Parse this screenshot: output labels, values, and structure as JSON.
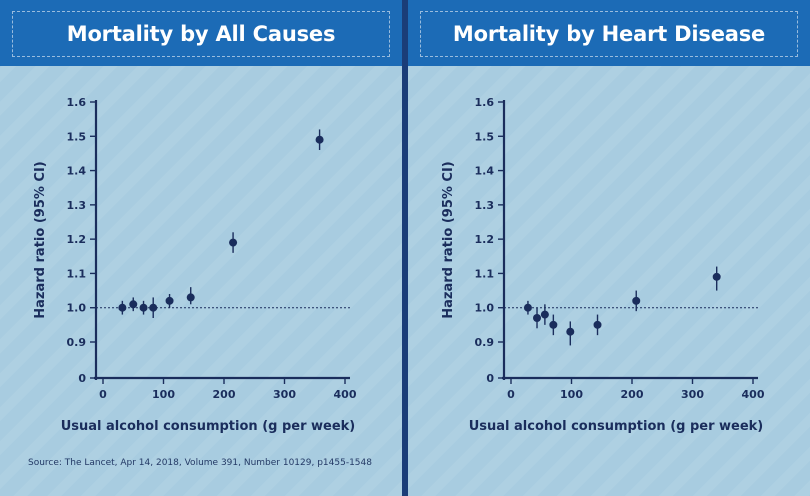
{
  "source": "Source: The Lancet, Apr 14, 2018, Volume 391, Number 10129, p1455-1548",
  "colors": {
    "header": "#1c6bb6",
    "divider": "#1a3d78",
    "marker": "#1a2d5c",
    "background": "#a8cce0"
  },
  "chart_data": [
    {
      "type": "scatter",
      "title": "Mortality by All Causes",
      "xlabel": "Usual alcohol consumption (g per week)",
      "ylabel": "Hazard ratio (95% CI)",
      "xlim": [
        -10,
        410
      ],
      "ylim": [
        0,
        1.6
      ],
      "y_axis_break": true,
      "xticks": [
        "0",
        "100",
        "200",
        "300",
        "400"
      ],
      "yticks": [
        "0",
        "0.9",
        "1.0",
        "1.1",
        "1.2",
        "1.3",
        "1.4",
        "1.5",
        "1.6"
      ],
      "reference_line": 1.0,
      "series": [
        {
          "x": [
            32,
            50,
            67,
            83,
            110,
            145,
            215,
            358
          ],
          "y": [
            1.0,
            1.01,
            1.0,
            1.0,
            1.02,
            1.03,
            1.19,
            1.49
          ],
          "y_low": [
            0.98,
            0.99,
            0.98,
            0.97,
            1.0,
            1.01,
            1.16,
            1.46
          ],
          "y_high": [
            1.02,
            1.03,
            1.02,
            1.03,
            1.04,
            1.06,
            1.22,
            1.52
          ]
        }
      ]
    },
    {
      "type": "scatter",
      "title": "Mortality by Heart Disease",
      "xlabel": "Usual alcohol consumption (g per week)",
      "ylabel": "Hazard ratio (95% CI)",
      "xlim": [
        -10,
        410
      ],
      "ylim": [
        0,
        1.6
      ],
      "y_axis_break": true,
      "xticks": [
        "0",
        "100",
        "200",
        "300",
        "400"
      ],
      "yticks": [
        "0",
        "0.9",
        "1.0",
        "1.1",
        "1.2",
        "1.3",
        "1.4",
        "1.5",
        "1.6"
      ],
      "reference_line": 1.0,
      "series": [
        {
          "x": [
            28,
            43,
            56,
            70,
            98,
            143,
            207,
            340
          ],
          "y": [
            1.0,
            0.97,
            0.98,
            0.95,
            0.93,
            0.95,
            1.02,
            1.09
          ],
          "y_low": [
            0.98,
            0.94,
            0.95,
            0.92,
            0.89,
            0.92,
            0.99,
            1.05
          ],
          "y_high": [
            1.02,
            1.0,
            1.01,
            0.98,
            0.96,
            0.98,
            1.05,
            1.12
          ]
        }
      ]
    }
  ]
}
